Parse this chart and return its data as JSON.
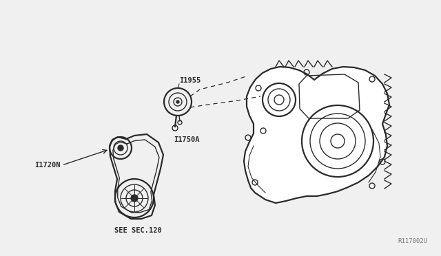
{
  "bg_color": "#f0f0f0",
  "line_color": "#2a2a2a",
  "text_color": "#2a2a2a",
  "label_11955": "I1955",
  "label_11750A": "I1750A",
  "label_11720N": "I1720N",
  "label_see_sec": "SEE SEC.120",
  "label_ref": "R117002U",
  "lw": 1.0,
  "lw2": 1.6
}
